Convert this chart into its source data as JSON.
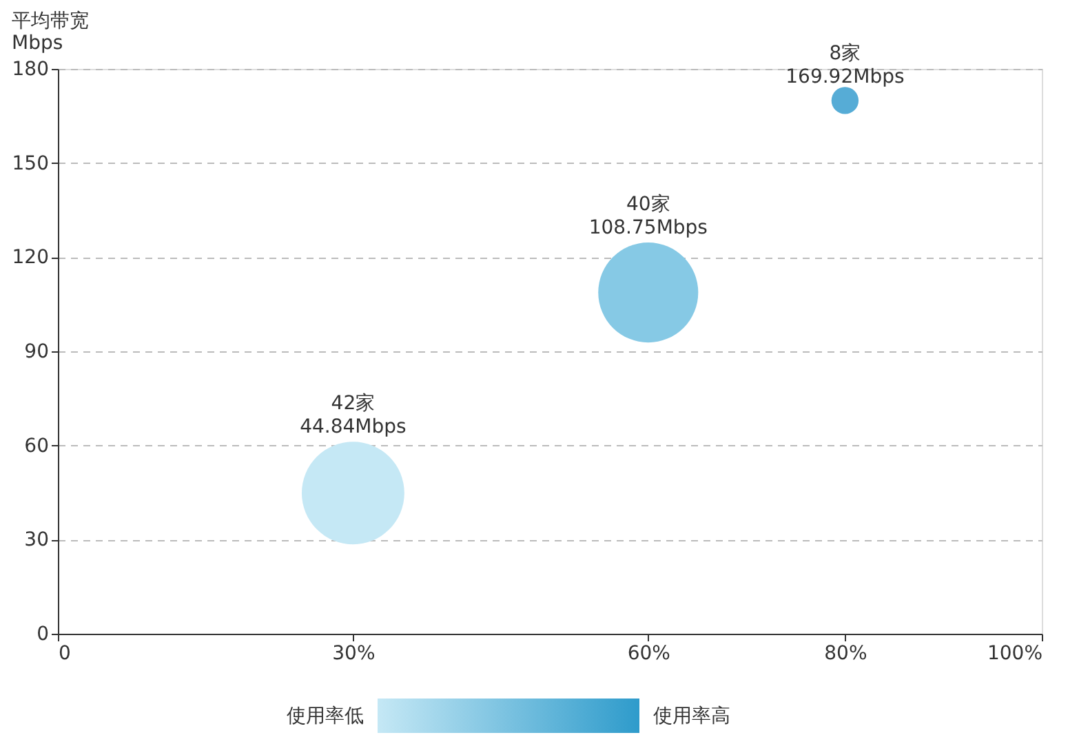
{
  "chart_data": {
    "type": "bubble",
    "ylabel": "平均带宽\nMbps",
    "x": [
      30,
      60,
      80
    ],
    "values": [
      44.84,
      108.75,
      169.92
    ],
    "sizes": [
      1,
      0.95,
      0.07
    ],
    "colors": [
      "#c5e8f5",
      "#86c9e5",
      "#56acd6"
    ],
    "value_labels": [
      "42家\n44.84Mbps",
      "40家\n108.75Mbps",
      "8家\n169.92Mbps"
    ],
    "xlim": [
      0,
      100
    ],
    "xticks": [
      0,
      {
        "value": 30,
        "label": "30%"
      },
      {
        "value": 60,
        "label": "60%"
      },
      {
        "value": 80,
        "label": "80%"
      },
      {
        "value": 100,
        "label": "100%"
      }
    ],
    "ylim": [
      0,
      180
    ],
    "yticks": [
      0,
      30,
      60,
      90,
      120,
      150,
      180
    ],
    "grid": "y",
    "annotations": [
      "使用率低",
      "使用率高"
    ]
  }
}
